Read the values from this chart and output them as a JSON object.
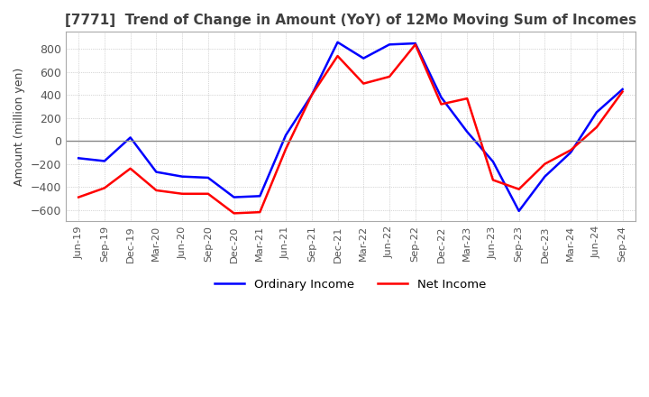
{
  "title": "[7771]  Trend of Change in Amount (YoY) of 12Mo Moving Sum of Incomes",
  "ylabel": "Amount (million yen)",
  "ylim": [
    -700,
    950
  ],
  "yticks": [
    -600,
    -400,
    -200,
    0,
    200,
    400,
    600,
    800
  ],
  "x_labels": [
    "Jun-19",
    "Sep-19",
    "Dec-19",
    "Mar-20",
    "Jun-20",
    "Sep-20",
    "Dec-20",
    "Mar-21",
    "Jun-21",
    "Sep-21",
    "Dec-21",
    "Mar-22",
    "Jun-22",
    "Sep-22",
    "Dec-22",
    "Mar-23",
    "Jun-23",
    "Sep-23",
    "Dec-23",
    "Mar-24",
    "Jun-24",
    "Sep-24"
  ],
  "ordinary_income": [
    -150,
    -175,
    30,
    -270,
    -310,
    -320,
    -490,
    -480,
    50,
    400,
    860,
    720,
    840,
    850,
    380,
    80,
    -180,
    -610,
    -310,
    -100,
    250,
    450
  ],
  "net_income": [
    -490,
    -410,
    -240,
    -430,
    -460,
    -460,
    -630,
    -620,
    -70,
    400,
    740,
    500,
    560,
    840,
    320,
    370,
    -340,
    -420,
    -200,
    -80,
    120,
    430
  ],
  "ordinary_color": "#0000ff",
  "net_color": "#ff0000",
  "background_color": "#ffffff",
  "grid_color": "#aaaaaa",
  "zeroline_color": "#888888",
  "title_color": "#404040",
  "tick_color": "#555555",
  "legend_labels": [
    "Ordinary Income",
    "Net Income"
  ],
  "line_width": 1.8
}
